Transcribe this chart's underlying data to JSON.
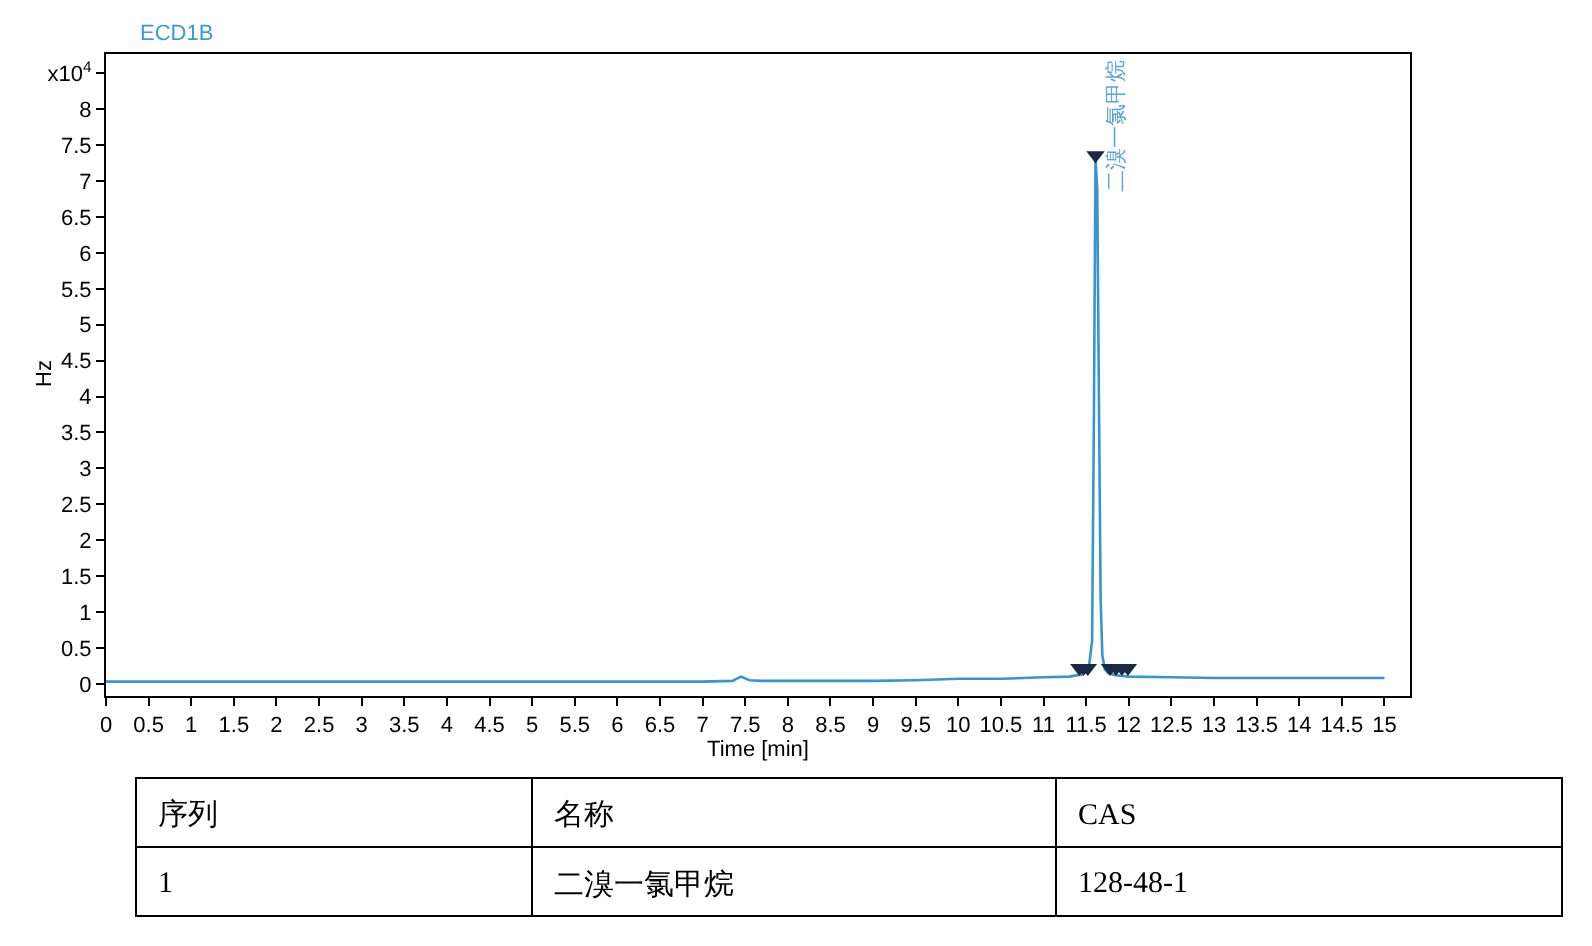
{
  "chart_data": {
    "type": "line",
    "title": "ECD1B",
    "xlabel": "Time [min]",
    "ylabel": "Hz",
    "xlim": [
      0,
      15.3
    ],
    "xticks": [
      0,
      0.5,
      1,
      1.5,
      2,
      2.5,
      3,
      3.5,
      4,
      4.5,
      5,
      5.5,
      6,
      6.5,
      7,
      7.5,
      8,
      8.5,
      9,
      9.5,
      10,
      10.5,
      11,
      11.5,
      12,
      12.5,
      13,
      13.5,
      14,
      14.5,
      15
    ],
    "ylim": [
      -0.17,
      8.77
    ],
    "yticks": [
      0,
      0.5,
      1,
      1.5,
      2,
      2.5,
      3,
      3.5,
      4,
      4.5,
      5,
      5.5,
      6,
      6.5,
      7,
      7.5,
      8,
      {
        "value": 8.5,
        "label": "x10$^{4}$"
      }
    ],
    "series": [
      {
        "color": "#3a93d3",
        "x": [
          0,
          2,
          4,
          6,
          7,
          7.35,
          7.45,
          7.55,
          7.7,
          8,
          8.5,
          9,
          9.5,
          10,
          10.5,
          11,
          11.3,
          11.45,
          11.53,
          11.57,
          11.59,
          11.61,
          11.63,
          11.65,
          11.67,
          11.69,
          11.72,
          11.76,
          11.85,
          12,
          12.5,
          13,
          14,
          15
        ],
        "values": [
          0.03,
          0.03,
          0.03,
          0.03,
          0.03,
          0.04,
          0.1,
          0.05,
          0.04,
          0.04,
          0.04,
          0.04,
          0.05,
          0.07,
          0.07,
          0.09,
          0.1,
          0.13,
          0.2,
          0.6,
          3.5,
          7.3,
          6.9,
          4,
          1.2,
          0.4,
          0.2,
          0.15,
          0.12,
          0.1,
          0.09,
          0.08,
          0.08,
          0.08
        ]
      },
      {
        "type": "scatter",
        "marker": "triangle",
        "color": "#1b2a44",
        "x": [
          11.42,
          11.47,
          11.52,
          11.61,
          11.78,
          11.85,
          11.92,
          11.99
        ],
        "values": [
          0.22,
          0.22,
          0.22,
          7.36,
          0.22,
          0.22,
          0.22,
          0.22
        ]
      }
    ],
    "annotations": [
      {
        "text": "二溴一氯甲烷",
        "x": 11.61,
        "y": 7.36
      },
      "序列",
      "名称",
      "CAS",
      "1",
      "二溴一氯甲烷",
      "128-48-1"
    ]
  }
}
